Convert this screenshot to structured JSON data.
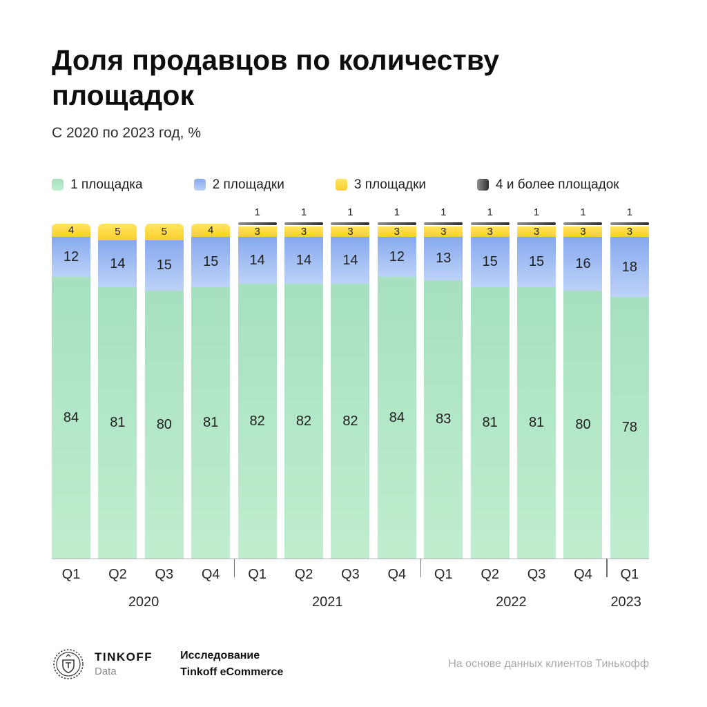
{
  "page": {
    "title": "Доля продавцов по количеству площадок",
    "subtitle": "С 2020 по 2023 год, %"
  },
  "legend": [
    {
      "label": "1 площадка",
      "color": "#aee4c4"
    },
    {
      "label": "2 площадки",
      "color": "#9bbcf3"
    },
    {
      "label": "3 площадки",
      "color": "#fdd940"
    },
    {
      "label": "4 и более площадок",
      "color": "#4a4a4a"
    }
  ],
  "chart_data": {
    "type": "bar",
    "stacked": true,
    "unit": "%",
    "title": "Доля продавцов по количеству площадок",
    "subtitle": "С 2020 по 2023 год, %",
    "ylim": [
      0,
      100
    ],
    "categories": [
      "Q1",
      "Q2",
      "Q3",
      "Q4",
      "Q1",
      "Q2",
      "Q3",
      "Q4",
      "Q1",
      "Q2",
      "Q3",
      "Q4",
      "Q1"
    ],
    "year_groups": [
      {
        "label": "2020",
        "span": 4
      },
      {
        "label": "2021",
        "span": 4
      },
      {
        "label": "2022",
        "span": 4
      },
      {
        "label": "2023",
        "span": 1
      }
    ],
    "series": [
      {
        "name": "1 площадка",
        "color": "#aee4c4",
        "values": [
          84,
          81,
          80,
          81,
          82,
          82,
          82,
          84,
          83,
          81,
          81,
          80,
          78
        ]
      },
      {
        "name": "2 площадки",
        "color": "#9bbcf3",
        "values": [
          12,
          14,
          15,
          15,
          14,
          14,
          14,
          12,
          13,
          15,
          15,
          16,
          18
        ]
      },
      {
        "name": "3 площадки",
        "color": "#fdd940",
        "values": [
          4,
          5,
          5,
          4,
          3,
          3,
          3,
          3,
          3,
          3,
          3,
          3,
          3
        ]
      },
      {
        "name": "4 и более площадок",
        "color": "#4a4a4a",
        "values": [
          0,
          0,
          0,
          0,
          1,
          1,
          1,
          1,
          1,
          1,
          1,
          1,
          1
        ]
      }
    ]
  },
  "footer": {
    "brand": "TINKOFF",
    "brand_sub": "Data",
    "research_line1": "Исследование",
    "research_line2": "Tinkoff eCommerce",
    "source": "На основе данных клиентов Тинькофф"
  }
}
